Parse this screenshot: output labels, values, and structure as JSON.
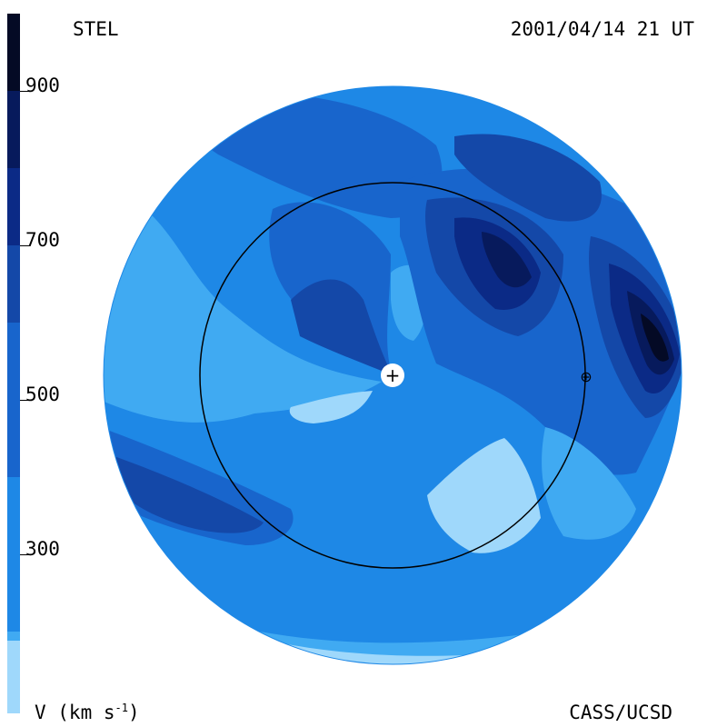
{
  "header": {
    "source": "STEL",
    "timestamp": "2001/04/14 21 UT"
  },
  "footer": {
    "units_prefix": "V (km s",
    "units_exp": "-1",
    "units_suffix": ")",
    "credit": "CASS/UCSD"
  },
  "colorbar": {
    "ticks": [
      "900",
      "700",
      "500",
      "300"
    ],
    "levels": [
      "#9fd8fb",
      "#40aaf2",
      "#1e88e6",
      "#1865cc",
      "#1448a8",
      "#0b2a86",
      "#071a5c",
      "#040a25"
    ]
  },
  "map": {
    "markers": {
      "sun": "+",
      "earth": "⊕"
    }
  }
}
